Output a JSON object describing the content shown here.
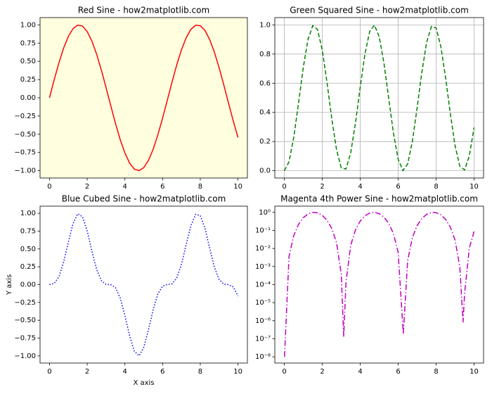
{
  "chart_data": [
    {
      "type": "line",
      "title": "Red Sine - how2matplotlib.com",
      "facecolor": "#ffffe0",
      "grid": false,
      "linestyle": "solid",
      "yscale": "linear",
      "x": [
        0,
        0.25,
        0.5,
        0.75,
        1,
        1.25,
        1.5,
        1.75,
        2,
        2.25,
        2.5,
        2.75,
        3,
        3.25,
        3.5,
        3.75,
        4,
        4.25,
        4.5,
        4.75,
        5,
        5.25,
        5.5,
        5.75,
        6,
        6.25,
        6.5,
        6.75,
        7,
        7.25,
        7.5,
        7.75,
        8,
        8.25,
        8.5,
        8.75,
        9,
        9.25,
        9.5,
        9.75,
        10
      ],
      "series": [
        {
          "color": "#ff0000",
          "values": [
            0,
            0.2474,
            0.4794,
            0.6816,
            0.8415,
            0.949,
            0.9975,
            0.984,
            0.9093,
            0.7781,
            0.5985,
            0.3817,
            0.1411,
            -0.1082,
            -0.3508,
            -0.5716,
            -0.7568,
            -0.895,
            -0.9775,
            -0.9993,
            -0.9589,
            -0.8589,
            -0.7055,
            -0.5083,
            -0.2794,
            -0.0332,
            0.2151,
            0.45,
            0.657,
            0.8231,
            0.938,
            0.9946,
            0.9894,
            0.9228,
            0.7985,
            0.6247,
            0.4121,
            0.1743,
            -0.0752,
            -0.3195,
            -0.544
          ]
        }
      ],
      "xlim": [
        -0.5,
        10.5
      ],
      "xticks": [
        0,
        2,
        4,
        6,
        8,
        10
      ],
      "ylim": [
        -1.1,
        1.1
      ],
      "yticks": [
        {
          "value": -1,
          "label": "−1.00"
        },
        {
          "value": -0.75,
          "label": "−0.75"
        },
        {
          "value": -0.5,
          "label": "−0.50"
        },
        {
          "value": -0.25,
          "label": "−0.25"
        },
        {
          "value": 0,
          "label": "0.00"
        },
        {
          "value": 0.25,
          "label": "0.25"
        },
        {
          "value": 0.5,
          "label": "0.50"
        },
        {
          "value": 0.75,
          "label": "0.75"
        },
        {
          "value": 1,
          "label": "1.00"
        }
      ]
    },
    {
      "type": "line",
      "title": "Green Squared Sine - how2matplotlib.com",
      "facecolor": "#ffffff",
      "grid": true,
      "linestyle": "dashed",
      "yscale": "linear",
      "x": [
        0,
        0.25,
        0.5,
        0.75,
        1,
        1.25,
        1.5,
        1.75,
        2,
        2.25,
        2.5,
        2.75,
        3,
        3.25,
        3.5,
        3.75,
        4,
        4.25,
        4.5,
        4.75,
        5,
        5.25,
        5.5,
        5.75,
        6,
        6.25,
        6.5,
        6.75,
        7,
        7.25,
        7.5,
        7.75,
        8,
        8.25,
        8.5,
        8.75,
        9,
        9.25,
        9.5,
        9.75,
        10
      ],
      "series": [
        {
          "color": "#008000",
          "values": [
            0,
            0.0612,
            0.2298,
            0.4646,
            0.7081,
            0.9006,
            0.995,
            0.9683,
            0.8268,
            0.6054,
            0.3582,
            0.1457,
            0.0199,
            0.0117,
            0.1231,
            0.3267,
            0.5727,
            0.801,
            0.9555,
            0.9986,
            0.9195,
            0.7377,
            0.4977,
            0.2584,
            0.0781,
            0.0011,
            0.0463,
            0.2025,
            0.4316,
            0.6775,
            0.8798,
            0.9892,
            0.9789,
            0.8516,
            0.6376,
            0.3902,
            0.1698,
            0.0304,
            0.0057,
            0.1021,
            0.2959
          ]
        }
      ],
      "xlim": [
        -0.5,
        10.5
      ],
      "xticks": [
        0,
        2,
        4,
        6,
        8,
        10
      ],
      "ylim": [
        -0.05,
        1.05
      ],
      "yticks": [
        {
          "value": 0,
          "label": "0.0"
        },
        0.2,
        0.4,
        0.6,
        0.8,
        {
          "value": 1,
          "label": "1.0"
        }
      ]
    },
    {
      "type": "line",
      "title": "Blue Cubed Sine - how2matplotlib.com",
      "xlabel": "X axis",
      "ylabel": "Y axis",
      "facecolor": "#ffffff",
      "grid": false,
      "linestyle": "dotted",
      "yscale": "linear",
      "x": [
        0,
        0.25,
        0.5,
        0.75,
        1,
        1.25,
        1.5,
        1.75,
        2,
        2.25,
        2.5,
        2.75,
        3,
        3.25,
        3.5,
        3.75,
        4,
        4.25,
        4.5,
        4.75,
        5,
        5.25,
        5.5,
        5.75,
        6,
        6.25,
        6.5,
        6.75,
        7,
        7.25,
        7.5,
        7.75,
        8,
        8.25,
        8.5,
        8.75,
        9,
        9.25,
        9.5,
        9.75,
        10
      ],
      "series": [
        {
          "color": "#0000ff",
          "values": [
            0,
            0.0151,
            0.1102,
            0.3167,
            0.5958,
            0.8547,
            0.9925,
            0.9528,
            0.7518,
            0.4711,
            0.2144,
            0.0556,
            0.0028,
            -0.0013,
            -0.0432,
            -0.1868,
            -0.4334,
            -0.7169,
            -0.934,
            -0.9979,
            -0.8817,
            -0.6336,
            -0.3512,
            -0.1313,
            -0.0218,
            -4e-05,
            0.01,
            0.0911,
            0.2836,
            0.5577,
            0.8253,
            0.9839,
            0.9685,
            0.7859,
            0.5091,
            0.2438,
            0.07,
            0.0053,
            -0.0004,
            -0.0326,
            -0.161
          ]
        }
      ],
      "xlim": [
        -0.5,
        10.5
      ],
      "xticks": [
        0,
        2,
        4,
        6,
        8,
        10
      ],
      "ylim": [
        -1.1,
        1.1
      ],
      "yticks": [
        {
          "value": -1,
          "label": "−1.00"
        },
        {
          "value": -0.75,
          "label": "−0.75"
        },
        {
          "value": -0.5,
          "label": "−0.50"
        },
        {
          "value": -0.25,
          "label": "−0.25"
        },
        {
          "value": 0,
          "label": "0.00"
        },
        {
          "value": 0.25,
          "label": "0.25"
        },
        {
          "value": 0.5,
          "label": "0.50"
        },
        {
          "value": 0.75,
          "label": "0.75"
        },
        {
          "value": 1,
          "label": "1.00"
        }
      ]
    },
    {
      "type": "line",
      "title": "Magenta 4th Power Sine - how2matplotlib.com",
      "facecolor": "#ffffff",
      "grid": false,
      "linestyle": "dashdot",
      "yscale": "log",
      "x": [
        0.01,
        0.25,
        0.5,
        0.75,
        1,
        1.25,
        1.5,
        1.75,
        2,
        2.25,
        2.5,
        2.75,
        3,
        3.13,
        3.25,
        3.5,
        3.75,
        4,
        4.25,
        4.5,
        4.75,
        5,
        5.25,
        5.5,
        5.75,
        6,
        6.27,
        6.5,
        6.75,
        7,
        7.25,
        7.5,
        7.75,
        8,
        8.25,
        8.5,
        8.75,
        9,
        9.25,
        9.42,
        9.5,
        9.75,
        10
      ],
      "series": [
        {
          "color": "#bf00bf",
          "values": [
            1e-08,
            0.00375,
            0.0528,
            0.2159,
            0.5014,
            0.8111,
            0.99,
            0.9376,
            0.6836,
            0.3665,
            0.1283,
            0.0212,
            0.000396,
            1.3e-07,
            0.000137,
            0.01515,
            0.1067,
            0.328,
            0.6416,
            0.913,
            0.9972,
            0.8455,
            0.5442,
            0.2477,
            0.0668,
            0.0061,
            1.8e-07,
            0.00214,
            0.041,
            0.1863,
            0.459,
            0.774,
            0.9785,
            0.9582,
            0.7252,
            0.4065,
            0.1523,
            0.0288,
            0.00092,
            8e-07,
            3.25e-05,
            0.01042,
            0.0876
          ]
        }
      ],
      "xlim": [
        -0.5,
        10.5
      ],
      "xticks": [
        0,
        2,
        4,
        6,
        8,
        10
      ],
      "ylim": [
        4.5e-09,
        2.2
      ],
      "yticks": [
        {
          "value": 1e-08,
          "label": "10⁻⁸"
        },
        {
          "value": 1e-07,
          "label": "10⁻⁷"
        },
        {
          "value": 1e-06,
          "label": "10⁻⁶"
        },
        {
          "value": 1e-05,
          "label": "10⁻⁵"
        },
        {
          "value": 0.0001,
          "label": "10⁻⁴"
        },
        {
          "value": 0.001,
          "label": "10⁻³"
        },
        {
          "value": 0.01,
          "label": "10⁻²"
        },
        {
          "value": 0.1,
          "label": "10⁻¹"
        },
        {
          "value": 1,
          "label": "10⁰"
        }
      ]
    }
  ]
}
